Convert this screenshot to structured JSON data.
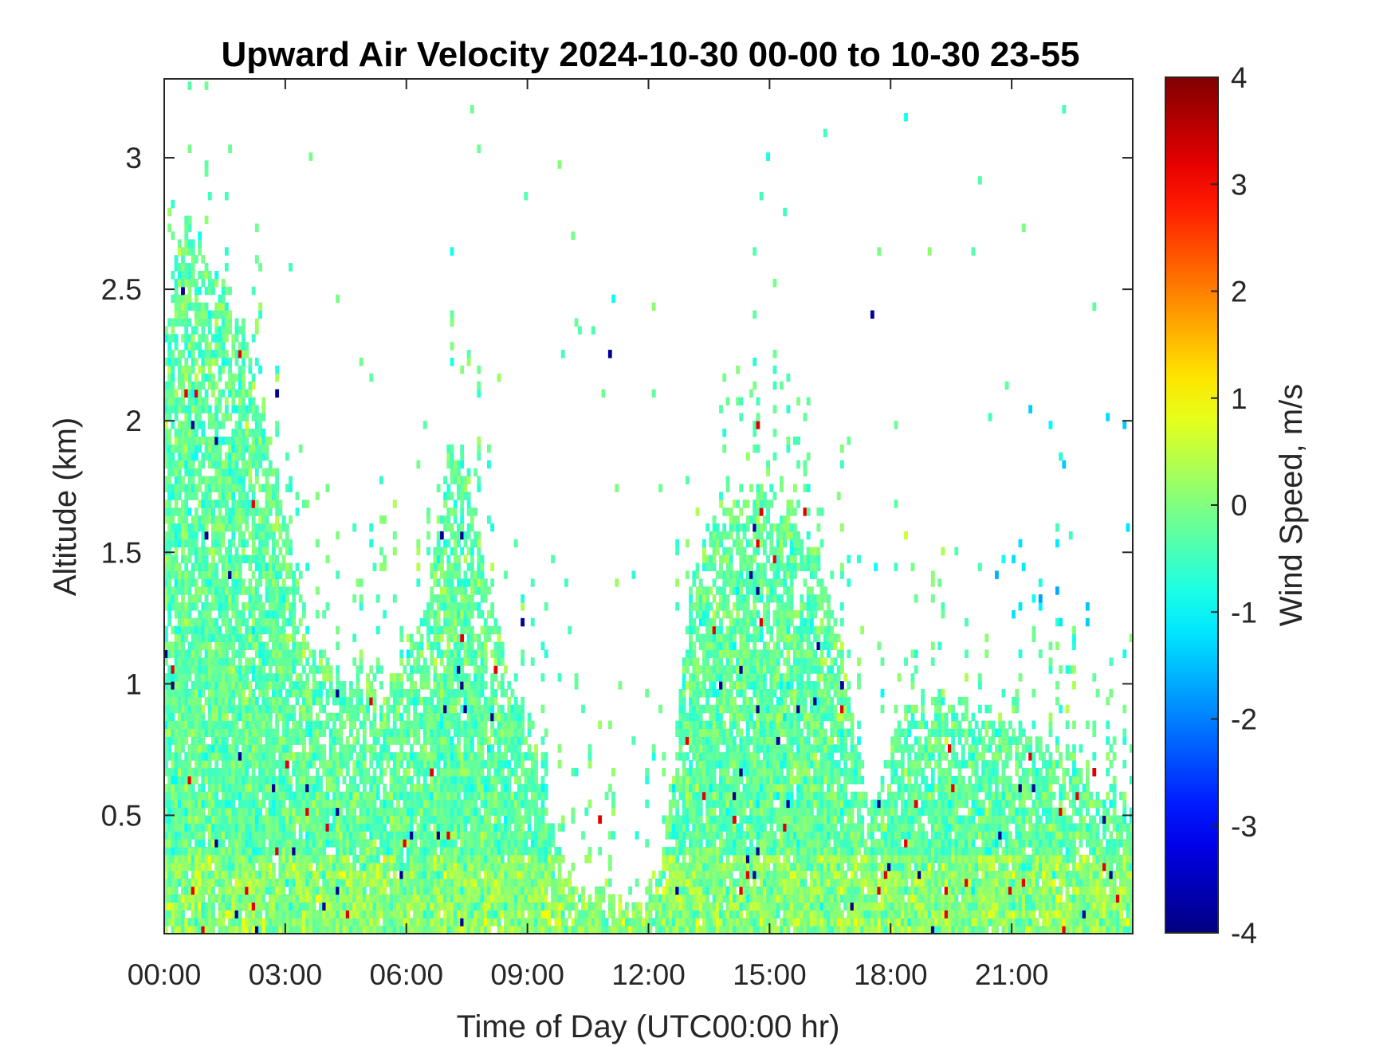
{
  "chart_data": {
    "type": "heatmap",
    "title": "Upward Air Velocity 2024-10-30 00-00 to 10-30 23-55",
    "xlabel": "Time of Day (UTC00:00 hr)",
    "ylabel": "Altitude (km)",
    "colorbar_label": "Wind Speed, m/s",
    "colormap": "jet",
    "xlim_hours": [
      0,
      24
    ],
    "ylim_km": [
      0.05,
      3.3
    ],
    "clim": [
      -4,
      4
    ],
    "x_ticks": [
      {
        "hour": 0,
        "label": "00:00"
      },
      {
        "hour": 3,
        "label": "03:00"
      },
      {
        "hour": 6,
        "label": "06:00"
      },
      {
        "hour": 9,
        "label": "09:00"
      },
      {
        "hour": 12,
        "label": "12:00"
      },
      {
        "hour": 15,
        "label": "15:00"
      },
      {
        "hour": 18,
        "label": "18:00"
      },
      {
        "hour": 21,
        "label": "21:00"
      }
    ],
    "y_ticks": [
      {
        "km": 0.5,
        "label": "0.5"
      },
      {
        "km": 1,
        "label": "1"
      },
      {
        "km": 1.5,
        "label": "1.5"
      },
      {
        "km": 2,
        "label": "2"
      },
      {
        "km": 2.5,
        "label": "2.5"
      },
      {
        "km": 3,
        "label": "3"
      }
    ],
    "colorbar_ticks": [
      {
        "value": 4,
        "label": "4"
      },
      {
        "value": 3,
        "label": "3"
      },
      {
        "value": 2,
        "label": "2"
      },
      {
        "value": 1,
        "label": "1"
      },
      {
        "value": 0,
        "label": "0"
      },
      {
        "value": -1,
        "label": "-1"
      },
      {
        "value": -2,
        "label": "-2"
      },
      {
        "value": -3,
        "label": "-3"
      },
      {
        "value": -4,
        "label": "-4"
      }
    ],
    "grid": "off",
    "legend": "none",
    "time_step_minutes": 5,
    "range_gate_km": 0.03,
    "coverage_upper_altitude_km": [
      {
        "hour": 0.0,
        "km": 2.4
      },
      {
        "hour": 0.5,
        "km": 2.75
      },
      {
        "hour": 1.0,
        "km": 2.6
      },
      {
        "hour": 2.0,
        "km": 2.3
      },
      {
        "hour": 3.0,
        "km": 1.6
      },
      {
        "hour": 3.5,
        "km": 1.1
      },
      {
        "hour": 4.5,
        "km": 1.0
      },
      {
        "hour": 5.5,
        "km": 0.95
      },
      {
        "hour": 6.5,
        "km": 1.3
      },
      {
        "hour": 7.0,
        "km": 1.9
      },
      {
        "hour": 7.5,
        "km": 1.8
      },
      {
        "hour": 8.0,
        "km": 1.3
      },
      {
        "hour": 8.5,
        "km": 1.0
      },
      {
        "hour": 9.0,
        "km": 0.85
      },
      {
        "hour": 9.5,
        "km": 0.5
      },
      {
        "hour": 10.0,
        "km": 0.22
      },
      {
        "hour": 11.0,
        "km": 0.15
      },
      {
        "hour": 11.8,
        "km": 0.15
      },
      {
        "hour": 12.2,
        "km": 0.3
      },
      {
        "hour": 12.5,
        "km": 0.6
      },
      {
        "hour": 13.0,
        "km": 1.3
      },
      {
        "hour": 13.5,
        "km": 1.65
      },
      {
        "hour": 14.5,
        "km": 1.75
      },
      {
        "hour": 15.5,
        "km": 1.65
      },
      {
        "hour": 16.5,
        "km": 1.35
      },
      {
        "hour": 17.0,
        "km": 0.85
      },
      {
        "hour": 17.5,
        "km": 0.5
      },
      {
        "hour": 18.0,
        "km": 0.8
      },
      {
        "hour": 19.0,
        "km": 0.95
      },
      {
        "hour": 20.0,
        "km": 0.9
      },
      {
        "hour": 21.0,
        "km": 0.85
      },
      {
        "hour": 22.0,
        "km": 0.75
      },
      {
        "hour": 23.0,
        "km": 0.6
      },
      {
        "hour": 24.0,
        "km": 0.5
      }
    ]
  }
}
